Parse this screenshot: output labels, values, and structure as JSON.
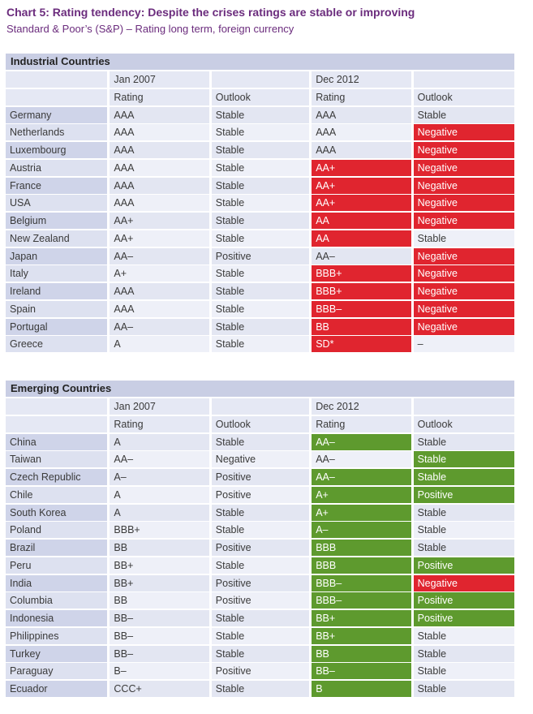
{
  "title": "Chart 5: Rating tendency: Despite the crises ratings are stable or improving",
  "subtitle": "Standard & Poor’s (S&P) – Rating long term, foreign currency",
  "colors": {
    "negative_change": "#e0252f",
    "positive_change": "#5e9a2e",
    "header_band": "#c9cee4"
  },
  "chart_data": [
    {
      "type": "table",
      "section": "Industrial Countries",
      "periods": [
        "Jan 2007",
        "Dec 2012"
      ],
      "columns": [
        "Rating",
        "Outlook",
        "Rating",
        "Outlook"
      ],
      "rows": [
        {
          "country": "Germany",
          "rating_2007": "AAA",
          "outlook_2007": "Stable",
          "rating_2012": "AAA",
          "outlook_2012": "Stable",
          "rating_2012_color": "none",
          "outlook_2012_color": "none"
        },
        {
          "country": "Netherlands",
          "rating_2007": "AAA",
          "outlook_2007": "Stable",
          "rating_2012": "AAA",
          "outlook_2012": "Negative",
          "rating_2012_color": "none",
          "outlook_2012_color": "red"
        },
        {
          "country": "Luxembourg",
          "rating_2007": "AAA",
          "outlook_2007": "Stable",
          "rating_2012": "AAA",
          "outlook_2012": "Negative",
          "rating_2012_color": "none",
          "outlook_2012_color": "red"
        },
        {
          "country": "Austria",
          "rating_2007": "AAA",
          "outlook_2007": "Stable",
          "rating_2012": "AA+",
          "outlook_2012": "Negative",
          "rating_2012_color": "red",
          "outlook_2012_color": "red"
        },
        {
          "country": "France",
          "rating_2007": "AAA",
          "outlook_2007": "Stable",
          "rating_2012": "AA+",
          "outlook_2012": "Negative",
          "rating_2012_color": "red",
          "outlook_2012_color": "red"
        },
        {
          "country": "USA",
          "rating_2007": "AAA",
          "outlook_2007": "Stable",
          "rating_2012": "AA+",
          "outlook_2012": "Negative",
          "rating_2012_color": "red",
          "outlook_2012_color": "red"
        },
        {
          "country": "Belgium",
          "rating_2007": "AA+",
          "outlook_2007": "Stable",
          "rating_2012": "AA",
          "outlook_2012": "Negative",
          "rating_2012_color": "red",
          "outlook_2012_color": "red"
        },
        {
          "country": "New Zealand",
          "rating_2007": "AA+",
          "outlook_2007": "Stable",
          "rating_2012": "AA",
          "outlook_2012": "Stable",
          "rating_2012_color": "red",
          "outlook_2012_color": "none"
        },
        {
          "country": "Japan",
          "rating_2007": "AA–",
          "outlook_2007": "Positive",
          "rating_2012": "AA–",
          "outlook_2012": "Negative",
          "rating_2012_color": "none",
          "outlook_2012_color": "red"
        },
        {
          "country": "Italy",
          "rating_2007": "A+",
          "outlook_2007": "Stable",
          "rating_2012": "BBB+",
          "outlook_2012": "Negative",
          "rating_2012_color": "red",
          "outlook_2012_color": "red"
        },
        {
          "country": "Ireland",
          "rating_2007": "AAA",
          "outlook_2007": "Stable",
          "rating_2012": "BBB+",
          "outlook_2012": "Negative",
          "rating_2012_color": "red",
          "outlook_2012_color": "red"
        },
        {
          "country": "Spain",
          "rating_2007": "AAA",
          "outlook_2007": "Stable",
          "rating_2012": "BBB–",
          "outlook_2012": "Negative",
          "rating_2012_color": "red",
          "outlook_2012_color": "red"
        },
        {
          "country": "Portugal",
          "rating_2007": "AA–",
          "outlook_2007": "Stable",
          "rating_2012": "BB",
          "outlook_2012": "Negative",
          "rating_2012_color": "red",
          "outlook_2012_color": "red"
        },
        {
          "country": "Greece",
          "rating_2007": "A",
          "outlook_2007": "Stable",
          "rating_2012": "SD*",
          "outlook_2012": "–",
          "rating_2012_color": "red",
          "outlook_2012_color": "none"
        }
      ]
    },
    {
      "type": "table",
      "section": "Emerging Countries",
      "periods": [
        "Jan 2007",
        "Dec 2012"
      ],
      "columns": [
        "Rating",
        "Outlook",
        "Rating",
        "Outlook"
      ],
      "rows": [
        {
          "country": "China",
          "rating_2007": "A",
          "outlook_2007": "Stable",
          "rating_2012": "AA–",
          "outlook_2012": "Stable",
          "rating_2012_color": "green",
          "outlook_2012_color": "none"
        },
        {
          "country": "Taiwan",
          "rating_2007": "AA–",
          "outlook_2007": "Negative",
          "rating_2012": "AA–",
          "outlook_2012": "Stable",
          "rating_2012_color": "none",
          "outlook_2012_color": "green"
        },
        {
          "country": "Czech Republic",
          "rating_2007": "A–",
          "outlook_2007": "Positive",
          "rating_2012": "AA–",
          "outlook_2012": "Stable",
          "rating_2012_color": "green",
          "outlook_2012_color": "green"
        },
        {
          "country": "Chile",
          "rating_2007": "A",
          "outlook_2007": "Positive",
          "rating_2012": "A+",
          "outlook_2012": "Positive",
          "rating_2012_color": "green",
          "outlook_2012_color": "green"
        },
        {
          "country": "South Korea",
          "rating_2007": "A",
          "outlook_2007": "Stable",
          "rating_2012": "A+",
          "outlook_2012": "Stable",
          "rating_2012_color": "green",
          "outlook_2012_color": "none"
        },
        {
          "country": "Poland",
          "rating_2007": "BBB+",
          "outlook_2007": "Stable",
          "rating_2012": "A–",
          "outlook_2012": "Stable",
          "rating_2012_color": "green",
          "outlook_2012_color": "none"
        },
        {
          "country": "Brazil",
          "rating_2007": "BB",
          "outlook_2007": "Positive",
          "rating_2012": "BBB",
          "outlook_2012": "Stable",
          "rating_2012_color": "green",
          "outlook_2012_color": "none"
        },
        {
          "country": "Peru",
          "rating_2007": "BB+",
          "outlook_2007": "Stable",
          "rating_2012": "BBB",
          "outlook_2012": "Positive",
          "rating_2012_color": "green",
          "outlook_2012_color": "green"
        },
        {
          "country": "India",
          "rating_2007": "BB+",
          "outlook_2007": "Positive",
          "rating_2012": "BBB–",
          "outlook_2012": "Negative",
          "rating_2012_color": "green",
          "outlook_2012_color": "red"
        },
        {
          "country": "Columbia",
          "rating_2007": "BB",
          "outlook_2007": "Positive",
          "rating_2012": "BBB–",
          "outlook_2012": "Positive",
          "rating_2012_color": "green",
          "outlook_2012_color": "green"
        },
        {
          "country": "Indonesia",
          "rating_2007": "BB–",
          "outlook_2007": "Stable",
          "rating_2012": "BB+",
          "outlook_2012": "Positive",
          "rating_2012_color": "green",
          "outlook_2012_color": "green"
        },
        {
          "country": "Philippines",
          "rating_2007": "BB–",
          "outlook_2007": "Stable",
          "rating_2012": "BB+",
          "outlook_2012": "Stable",
          "rating_2012_color": "green",
          "outlook_2012_color": "none"
        },
        {
          "country": "Turkey",
          "rating_2007": "BB–",
          "outlook_2007": "Stable",
          "rating_2012": "BB",
          "outlook_2012": "Stable",
          "rating_2012_color": "green",
          "outlook_2012_color": "none"
        },
        {
          "country": "Paraguay",
          "rating_2007": "B–",
          "outlook_2007": "Positive",
          "rating_2012": "BB–",
          "outlook_2012": "Stable",
          "rating_2012_color": "green",
          "outlook_2012_color": "none"
        },
        {
          "country": "Ecuador",
          "rating_2007": "CCC+",
          "outlook_2007": "Stable",
          "rating_2012": "B",
          "outlook_2012": "Stable",
          "rating_2012_color": "green",
          "outlook_2012_color": "none"
        }
      ]
    }
  ]
}
